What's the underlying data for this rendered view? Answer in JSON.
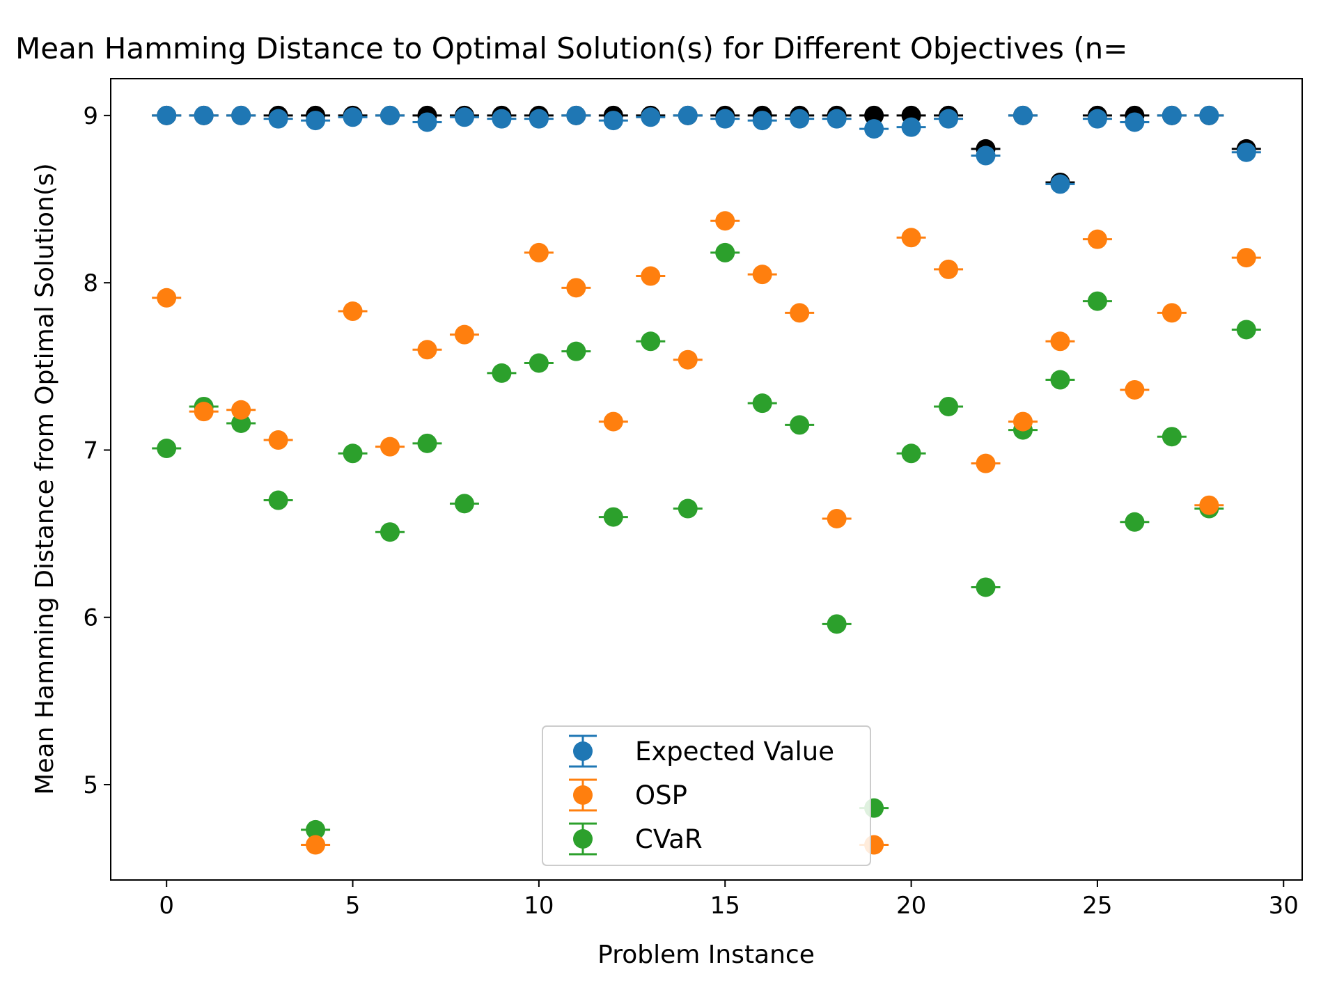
{
  "chart_data": {
    "type": "scatter",
    "title": "Mean Hamming Distance to Optimal Solution(s) for Different Objectives (n=",
    "xlabel": "Problem Instance",
    "ylabel": "Mean Hamming Distance from Optimal Solution(s)",
    "xlim": [
      -1.5,
      30.5
    ],
    "ylim": [
      4.43,
      9.22
    ],
    "x_ticks": [
      0,
      5,
      10,
      15,
      20,
      25,
      30
    ],
    "y_ticks": [
      5,
      6,
      7,
      8,
      9
    ],
    "grid": false,
    "legend_position": "lower-center",
    "x": [
      0,
      1,
      2,
      3,
      4,
      5,
      6,
      7,
      8,
      9,
      10,
      11,
      12,
      13,
      14,
      15,
      16,
      17,
      18,
      19,
      20,
      21,
      22,
      23,
      24,
      25,
      26,
      27,
      28,
      29
    ],
    "reference": {
      "color": "#000000",
      "values": [
        9.0,
        9.0,
        9.0,
        9.0,
        9.0,
        9.0,
        9.0,
        9.0,
        9.0,
        9.0,
        9.0,
        9.0,
        9.0,
        9.0,
        9.0,
        9.0,
        9.0,
        9.0,
        9.0,
        9.0,
        9.0,
        9.0,
        8.8,
        9.0,
        8.6,
        9.0,
        9.0,
        9.0,
        9.0,
        8.8
      ]
    },
    "series": [
      {
        "name": "Expected Value",
        "color": "#1f77b4",
        "values": [
          9.0,
          9.0,
          9.0,
          8.98,
          8.97,
          8.99,
          9.0,
          8.96,
          8.99,
          8.98,
          8.98,
          9.0,
          8.97,
          8.99,
          9.0,
          8.98,
          8.97,
          8.98,
          8.98,
          8.92,
          8.93,
          8.98,
          8.76,
          9.0,
          8.59,
          8.98,
          8.96,
          9.0,
          9.0,
          8.78
        ]
      },
      {
        "name": "OSP",
        "color": "#ff7f0e",
        "values": [
          7.91,
          7.23,
          7.24,
          7.06,
          4.64,
          7.83,
          7.02,
          7.6,
          7.69,
          null,
          8.18,
          7.97,
          7.17,
          8.04,
          7.54,
          8.37,
          8.05,
          7.82,
          6.59,
          4.64,
          8.27,
          8.08,
          6.92,
          7.17,
          7.65,
          8.26,
          7.36,
          7.82,
          6.67,
          8.15
        ]
      },
      {
        "name": "CVaR",
        "color": "#2ca02c",
        "values": [
          7.01,
          7.26,
          7.16,
          6.7,
          4.73,
          6.98,
          6.51,
          7.04,
          6.68,
          7.46,
          7.52,
          7.59,
          6.6,
          7.65,
          6.65,
          8.18,
          7.28,
          7.15,
          5.96,
          4.86,
          6.98,
          7.26,
          6.18,
          7.12,
          7.42,
          7.89,
          6.57,
          7.08,
          6.65,
          7.72
        ]
      }
    ]
  }
}
